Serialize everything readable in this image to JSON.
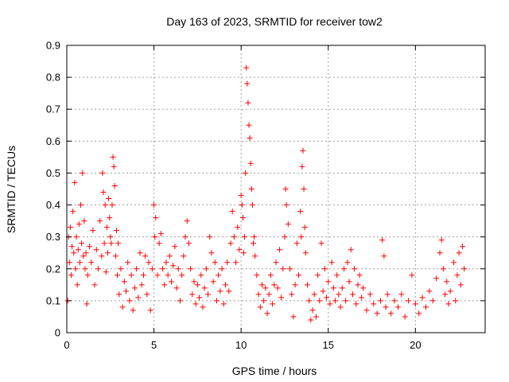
{
  "chart_data": {
    "type": "scatter",
    "title": "Day 163 of 2023, SRMTID for receiver tow2",
    "xlabel": "GPS time / hours",
    "ylabel": "SRMTID / TECUs",
    "xlim": [
      0,
      24
    ],
    "ylim": [
      0,
      0.9
    ],
    "xticks": [
      0,
      5,
      10,
      15,
      20
    ],
    "yticks": [
      0,
      0.1,
      0.2,
      0.3,
      0.4,
      0.5,
      0.6,
      0.7,
      0.8,
      0.9
    ],
    "ytick_labels": [
      "0",
      "0.1",
      "0.2",
      "0.3",
      "0.4",
      "0.5",
      "0.6",
      "0.7",
      "0.8",
      "0.9"
    ],
    "grid": true,
    "marker": "+",
    "series": [
      {
        "name": "SRMTID",
        "color": "#ff0000",
        "points": [
          [
            0.05,
            0.1
          ],
          [
            0.1,
            0.3
          ],
          [
            0.15,
            0.22
          ],
          [
            0.2,
            0.33
          ],
          [
            0.25,
            0.18
          ],
          [
            0.3,
            0.27
          ],
          [
            0.35,
            0.38
          ],
          [
            0.4,
            0.25
          ],
          [
            0.45,
            0.47
          ],
          [
            0.5,
            0.2
          ],
          [
            0.55,
            0.3
          ],
          [
            0.6,
            0.15
          ],
          [
            0.65,
            0.26
          ],
          [
            0.7,
            0.34
          ],
          [
            0.75,
            0.22
          ],
          [
            0.8,
            0.4
          ],
          [
            0.85,
            0.28
          ],
          [
            0.9,
            0.5
          ],
          [
            0.95,
            0.24
          ],
          [
            1.0,
            0.35
          ],
          [
            1.05,
            0.2
          ],
          [
            1.1,
            0.25
          ],
          [
            1.15,
            0.09
          ],
          [
            1.2,
            0.18
          ],
          [
            1.3,
            0.27
          ],
          [
            1.4,
            0.22
          ],
          [
            1.5,
            0.32
          ],
          [
            1.6,
            0.15
          ],
          [
            1.7,
            0.26
          ],
          [
            1.8,
            0.2
          ],
          [
            1.9,
            0.35
          ],
          [
            2.0,
            0.24
          ],
          [
            2.05,
            0.5
          ],
          [
            2.1,
            0.44
          ],
          [
            2.15,
            0.28
          ],
          [
            2.2,
            0.4
          ],
          [
            2.25,
            0.19
          ],
          [
            2.3,
            0.33
          ],
          [
            2.35,
            0.25
          ],
          [
            2.4,
            0.42
          ],
          [
            2.45,
            0.36
          ],
          [
            2.5,
            0.3
          ],
          [
            2.55,
            0.28
          ],
          [
            2.6,
            0.4
          ],
          [
            2.65,
            0.55
          ],
          [
            2.7,
            0.52
          ],
          [
            2.75,
            0.46
          ],
          [
            2.8,
            0.24
          ],
          [
            2.85,
            0.32
          ],
          [
            2.9,
            0.18
          ],
          [
            2.95,
            0.28
          ],
          [
            3.0,
            0.12
          ],
          [
            3.1,
            0.2
          ],
          [
            3.2,
            0.08
          ],
          [
            3.3,
            0.16
          ],
          [
            3.4,
            0.13
          ],
          [
            3.5,
            0.22
          ],
          [
            3.6,
            0.1
          ],
          [
            3.7,
            0.18
          ],
          [
            3.8,
            0.07
          ],
          [
            3.9,
            0.14
          ],
          [
            4.0,
            0.2
          ],
          [
            4.1,
            0.11
          ],
          [
            4.2,
            0.25
          ],
          [
            4.3,
            0.15
          ],
          [
            4.4,
            0.18
          ],
          [
            4.5,
            0.24
          ],
          [
            4.6,
            0.12
          ],
          [
            4.7,
            0.22
          ],
          [
            4.8,
            0.07
          ],
          [
            4.9,
            0.2
          ],
          [
            5.0,
            0.4
          ],
          [
            5.05,
            0.3
          ],
          [
            5.1,
            0.36
          ],
          [
            5.2,
            0.18
          ],
          [
            5.3,
            0.28
          ],
          [
            5.4,
            0.31
          ],
          [
            5.5,
            0.2
          ],
          [
            5.6,
            0.15
          ],
          [
            5.7,
            0.22
          ],
          [
            5.8,
            0.18
          ],
          [
            5.9,
            0.24
          ],
          [
            6.0,
            0.16
          ],
          [
            6.1,
            0.21
          ],
          [
            6.2,
            0.27
          ],
          [
            6.3,
            0.14
          ],
          [
            6.4,
            0.2
          ],
          [
            6.5,
            0.1
          ],
          [
            6.6,
            0.18
          ],
          [
            6.7,
            0.24
          ],
          [
            6.8,
            0.3
          ],
          [
            6.9,
            0.35
          ],
          [
            7.0,
            0.28
          ],
          [
            7.1,
            0.2
          ],
          [
            7.2,
            0.12
          ],
          [
            7.3,
            0.16
          ],
          [
            7.4,
            0.09
          ],
          [
            7.5,
            0.15
          ],
          [
            7.6,
            0.11
          ],
          [
            7.7,
            0.18
          ],
          [
            7.8,
            0.08
          ],
          [
            7.9,
            0.14
          ],
          [
            8.0,
            0.2
          ],
          [
            8.1,
            0.12
          ],
          [
            8.2,
            0.3
          ],
          [
            8.3,
            0.25
          ],
          [
            8.4,
            0.16
          ],
          [
            8.5,
            0.22
          ],
          [
            8.6,
            0.1
          ],
          [
            8.7,
            0.18
          ],
          [
            8.8,
            0.13
          ],
          [
            8.9,
            0.2
          ],
          [
            9.0,
            0.09
          ],
          [
            9.1,
            0.15
          ],
          [
            9.2,
            0.22
          ],
          [
            9.3,
            0.13
          ],
          [
            9.4,
            0.28
          ],
          [
            9.5,
            0.38
          ],
          [
            9.6,
            0.3
          ],
          [
            9.7,
            0.22
          ],
          [
            9.8,
            0.33
          ],
          [
            9.9,
            0.26
          ],
          [
            10.0,
            0.43
          ],
          [
            10.05,
            0.4
          ],
          [
            10.1,
            0.36
          ],
          [
            10.15,
            0.25
          ],
          [
            10.2,
            0.3
          ],
          [
            10.25,
            0.5
          ],
          [
            10.3,
            0.83
          ],
          [
            10.35,
            0.78
          ],
          [
            10.4,
            0.72
          ],
          [
            10.45,
            0.65
          ],
          [
            10.5,
            0.61
          ],
          [
            10.55,
            0.53
          ],
          [
            10.6,
            0.45
          ],
          [
            10.65,
            0.4
          ],
          [
            10.7,
            0.28
          ],
          [
            10.75,
            0.3
          ],
          [
            10.8,
            0.24
          ],
          [
            10.9,
            0.18
          ],
          [
            11.0,
            0.12
          ],
          [
            11.1,
            0.08
          ],
          [
            11.2,
            0.15
          ],
          [
            11.3,
            0.1
          ],
          [
            11.4,
            0.14
          ],
          [
            11.5,
            0.06
          ],
          [
            11.6,
            0.12
          ],
          [
            11.7,
            0.18
          ],
          [
            11.8,
            0.09
          ],
          [
            11.9,
            0.15
          ],
          [
            12.0,
            0.22
          ],
          [
            12.1,
            0.14
          ],
          [
            12.2,
            0.26
          ],
          [
            12.3,
            0.11
          ],
          [
            12.4,
            0.2
          ],
          [
            12.5,
            0.3
          ],
          [
            12.55,
            0.45
          ],
          [
            12.6,
            0.4
          ],
          [
            12.7,
            0.34
          ],
          [
            12.8,
            0.2
          ],
          [
            12.9,
            0.12
          ],
          [
            13.0,
            0.05
          ],
          [
            13.1,
            0.15
          ],
          [
            13.2,
            0.28
          ],
          [
            13.3,
            0.18
          ],
          [
            13.4,
            0.38
          ],
          [
            13.45,
            0.3
          ],
          [
            13.5,
            0.52
          ],
          [
            13.55,
            0.57
          ],
          [
            13.6,
            0.45
          ],
          [
            13.65,
            0.33
          ],
          [
            13.7,
            0.25
          ],
          [
            13.8,
            0.15
          ],
          [
            13.9,
            0.1
          ],
          [
            14.0,
            0.04
          ],
          [
            14.1,
            0.07
          ],
          [
            14.2,
            0.12
          ],
          [
            14.3,
            0.05
          ],
          [
            14.4,
            0.18
          ],
          [
            14.5,
            0.1
          ],
          [
            14.6,
            0.28
          ],
          [
            14.7,
            0.13
          ],
          [
            14.8,
            0.2
          ],
          [
            14.9,
            0.11
          ],
          [
            15.0,
            0.16
          ],
          [
            15.1,
            0.09
          ],
          [
            15.2,
            0.22
          ],
          [
            15.3,
            0.14
          ],
          [
            15.4,
            0.1
          ],
          [
            15.5,
            0.18
          ],
          [
            15.6,
            0.12
          ],
          [
            15.7,
            0.08
          ],
          [
            15.8,
            0.14
          ],
          [
            15.9,
            0.2
          ],
          [
            16.0,
            0.1
          ],
          [
            16.1,
            0.22
          ],
          [
            16.2,
            0.16
          ],
          [
            16.3,
            0.26
          ],
          [
            16.4,
            0.12
          ],
          [
            16.5,
            0.2
          ],
          [
            16.6,
            0.09
          ],
          [
            16.7,
            0.15
          ],
          [
            16.8,
            0.18
          ],
          [
            16.9,
            0.11
          ],
          [
            17.0,
            0.14
          ],
          [
            17.2,
            0.07
          ],
          [
            17.4,
            0.12
          ],
          [
            17.6,
            0.09
          ],
          [
            17.8,
            0.06
          ],
          [
            18.0,
            0.1
          ],
          [
            18.1,
            0.29
          ],
          [
            18.2,
            0.24
          ],
          [
            18.3,
            0.08
          ],
          [
            18.4,
            0.12
          ],
          [
            18.6,
            0.06
          ],
          [
            18.8,
            0.1
          ],
          [
            19.0,
            0.08
          ],
          [
            19.2,
            0.12
          ],
          [
            19.4,
            0.05
          ],
          [
            19.6,
            0.1
          ],
          [
            19.8,
            0.18
          ],
          [
            20.0,
            0.09
          ],
          [
            20.2,
            0.06
          ],
          [
            20.4,
            0.11
          ],
          [
            20.6,
            0.08
          ],
          [
            20.8,
            0.13
          ],
          [
            21.0,
            0.1
          ],
          [
            21.2,
            0.17
          ],
          [
            21.4,
            0.25
          ],
          [
            21.5,
            0.29
          ],
          [
            21.6,
            0.2
          ],
          [
            21.7,
            0.12
          ],
          [
            21.8,
            0.16
          ],
          [
            21.9,
            0.09
          ],
          [
            22.0,
            0.13
          ],
          [
            22.2,
            0.22
          ],
          [
            22.3,
            0.1
          ],
          [
            22.4,
            0.18
          ],
          [
            22.5,
            0.25
          ],
          [
            22.6,
            0.15
          ],
          [
            22.7,
            0.27
          ],
          [
            22.8,
            0.2
          ]
        ]
      }
    ]
  }
}
